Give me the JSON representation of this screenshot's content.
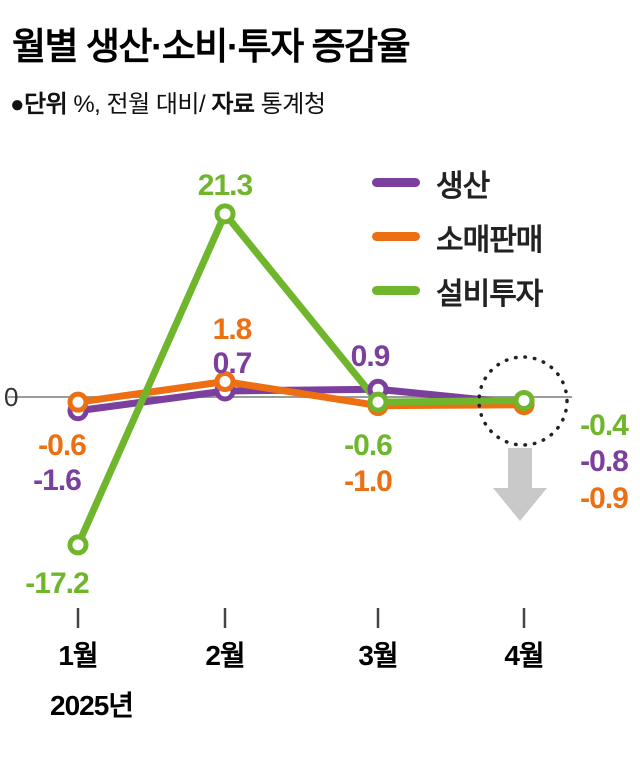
{
  "header": {
    "title": "월별 생산·소비·투자 증감율",
    "subtitle_unit_label": "●단위",
    "subtitle_unit_rest": " %, 전월 대비/ ",
    "subtitle_source_label": "자료",
    "subtitle_source_value": " 통계청"
  },
  "legend": [
    {
      "label": "생산",
      "color": "#7b3f9e"
    },
    {
      "label": "소매판매",
      "color": "#ec7013"
    },
    {
      "label": "설비투자",
      "color": "#70b62c"
    }
  ],
  "axis": {
    "zero_label": "0",
    "months": [
      "1월",
      "2월",
      "3월",
      "4월"
    ],
    "year_label": "2025년"
  },
  "chart_data": {
    "type": "line",
    "title": "월별 생산·소비·투자 증감율",
    "unit": "%",
    "note": "전월 대비",
    "source": "통계청",
    "categories": [
      "1월",
      "2월",
      "3월",
      "4월"
    ],
    "series": [
      {
        "name": "생산",
        "color": "#7b3f9e",
        "values": [
          -1.6,
          0.7,
          0.9,
          -0.8
        ]
      },
      {
        "name": "소매판매",
        "color": "#ec7013",
        "values": [
          -0.6,
          1.8,
          -1.0,
          -0.9
        ]
      },
      {
        "name": "설비투자",
        "color": "#70b62c",
        "values": [
          -17.2,
          21.3,
          -0.6,
          -0.4
        ]
      }
    ],
    "ylim": [
      -20,
      24
    ],
    "grid": false,
    "legend_position": "top-right",
    "annotations": {
      "highlighted_category": "4월",
      "highlight_style": "dotted-circle",
      "arrow_direction": "down",
      "arrow_color": "#c9c9c9"
    }
  }
}
